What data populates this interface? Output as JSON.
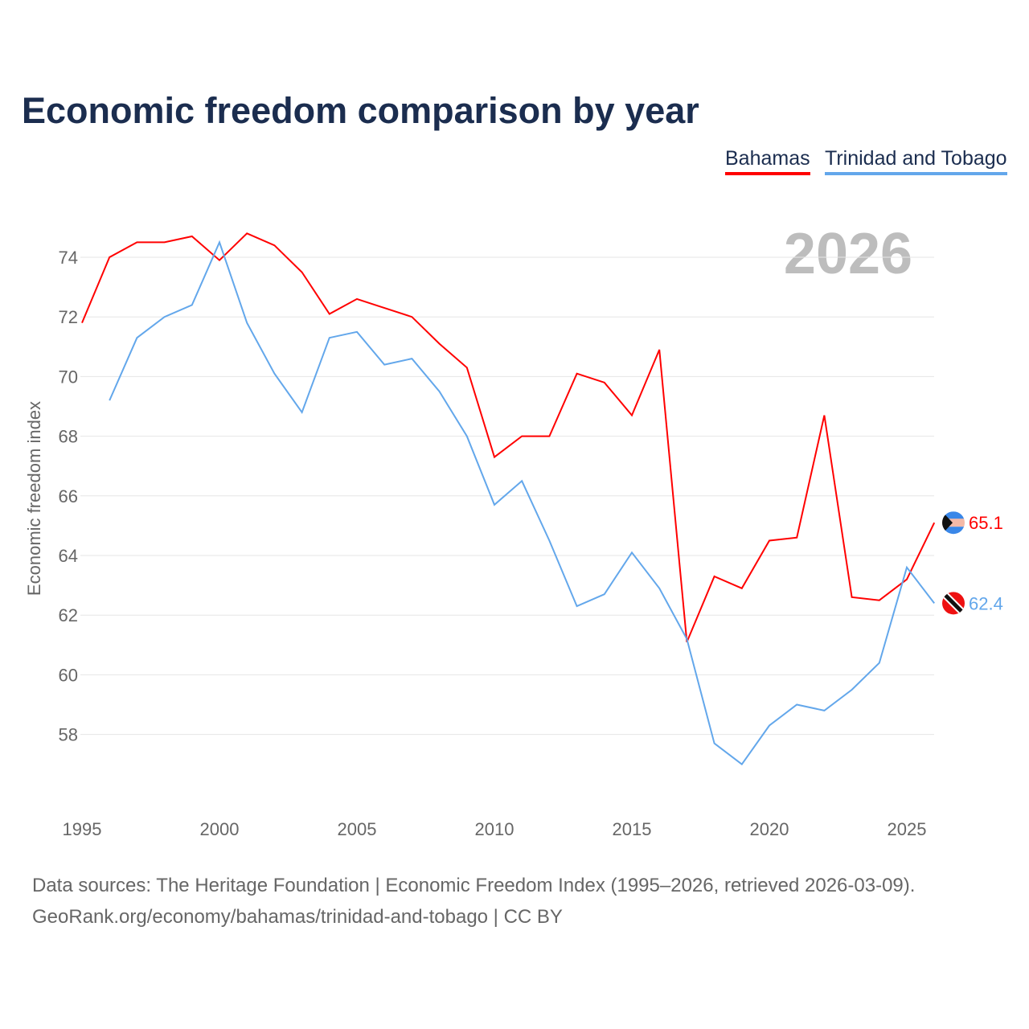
{
  "chart_data": {
    "type": "line",
    "title": "Economic freedom comparison by year",
    "ylabel": "Economic freedom index",
    "xlabel": "",
    "watermark_year": "2026",
    "xlim": [
      1995,
      2026
    ],
    "ylim": [
      56,
      75.5
    ],
    "yticks": [
      58,
      60,
      62,
      64,
      66,
      68,
      70,
      72,
      74
    ],
    "xticks": [
      1995,
      2000,
      2005,
      2010,
      2015,
      2020,
      2025
    ],
    "grid": true,
    "legend_placement": "top-right",
    "series": [
      {
        "name": "Bahamas",
        "color": "#ff0000",
        "end_label": "65.1",
        "flag": "bahamas-flag",
        "x": [
          1995,
          1996,
          1997,
          1998,
          1999,
          2000,
          2001,
          2002,
          2003,
          2004,
          2005,
          2006,
          2007,
          2008,
          2009,
          2010,
          2011,
          2012,
          2013,
          2014,
          2015,
          2016,
          2017,
          2018,
          2019,
          2020,
          2021,
          2022,
          2023,
          2024,
          2025,
          2026
        ],
        "values": [
          71.8,
          74.0,
          74.5,
          74.5,
          74.7,
          73.9,
          74.8,
          74.4,
          73.5,
          72.1,
          72.6,
          72.3,
          72.0,
          71.1,
          70.3,
          67.3,
          68.0,
          68.0,
          70.1,
          69.8,
          68.7,
          70.9,
          61.1,
          63.3,
          62.9,
          64.5,
          64.6,
          68.7,
          62.6,
          62.5,
          63.2,
          65.1
        ]
      },
      {
        "name": "Trinidad and Tobago",
        "color": "#63a7eb",
        "end_label": "62.4",
        "flag": "trinidad-flag",
        "x": [
          1996,
          1997,
          1998,
          1999,
          2000,
          2001,
          2002,
          2003,
          2004,
          2005,
          2006,
          2007,
          2008,
          2009,
          2010,
          2011,
          2012,
          2013,
          2014,
          2015,
          2016,
          2017,
          2018,
          2019,
          2020,
          2021,
          2022,
          2023,
          2024,
          2025,
          2026
        ],
        "values": [
          69.2,
          71.3,
          72.0,
          72.4,
          74.5,
          71.8,
          70.1,
          68.8,
          71.3,
          71.5,
          70.4,
          70.6,
          69.5,
          68.0,
          65.7,
          66.5,
          64.5,
          62.3,
          62.7,
          64.1,
          62.9,
          61.2,
          57.7,
          57.0,
          58.3,
          59.0,
          58.8,
          59.5,
          60.4,
          63.6,
          62.4
        ]
      }
    ]
  },
  "footer": {
    "line1": "Data sources: The Heritage Foundation | Economic Freedom Index (1995–2026, retrieved 2026-03-09).",
    "line2": "GeoRank.org/economy/bahamas/trinidad-and-tobago | CC BY"
  }
}
